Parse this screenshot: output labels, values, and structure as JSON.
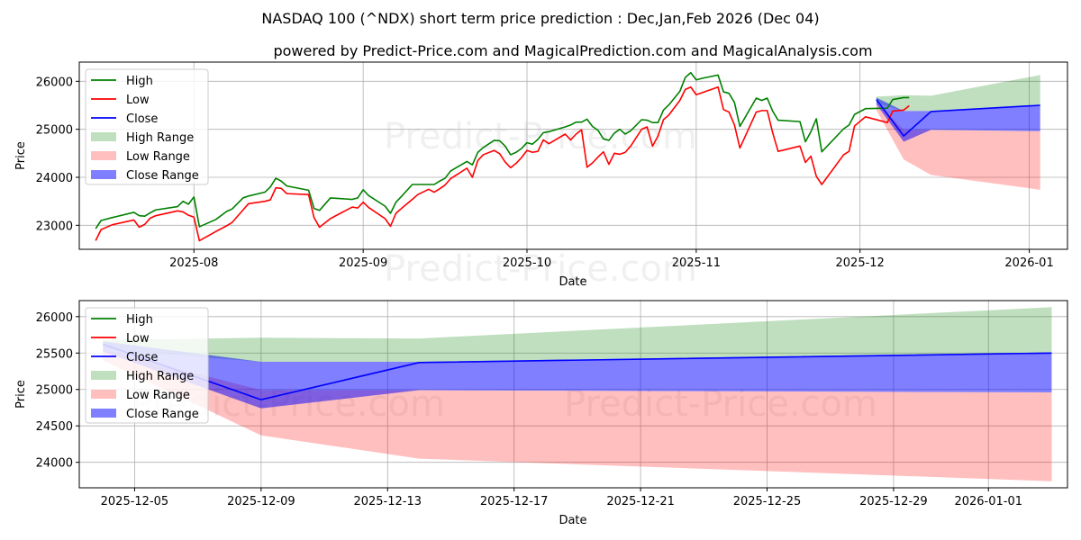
{
  "title": "NASDAQ 100 (^NDX) short term price prediction : Dec,Jan,Feb 2026 (Dec 04)",
  "subtitle": "powered by Predict-Price.com and MagicalPrediction.com and MagicalAnalysis.com",
  "watermark": "Predict-Price.com",
  "colors": {
    "high": "#008000",
    "low": "#ff0000",
    "close": "#0000ff",
    "high_range": "#008000",
    "low_range": "#ff0000",
    "close_range": "#0000ff",
    "grid": "#b0b0b0"
  },
  "legend": [
    {
      "key": "high",
      "label": "High",
      "kind": "line"
    },
    {
      "key": "low",
      "label": "Low",
      "kind": "line"
    },
    {
      "key": "close",
      "label": "Close",
      "kind": "line"
    },
    {
      "key": "high_range",
      "label": "High Range",
      "kind": "patch"
    },
    {
      "key": "low_range",
      "label": "Low Range",
      "kind": "patch"
    },
    {
      "key": "close_range",
      "label": "Close Range",
      "kind": "patch"
    }
  ],
  "chart_data": [
    {
      "type": "line",
      "panel": "top",
      "xlabel": "Date",
      "ylabel": "Price",
      "legend_position": "top-left",
      "grid": true,
      "xlim": [
        "2025-07-11",
        "2026-01-08"
      ],
      "ylim": [
        22500,
        26400
      ],
      "x_ticks": [
        {
          "date": "2025-08-01",
          "label": "2025-08"
        },
        {
          "date": "2025-09-01",
          "label": "2025-09"
        },
        {
          "date": "2025-10-01",
          "label": "2025-10"
        },
        {
          "date": "2025-11-01",
          "label": "2025-11"
        },
        {
          "date": "2025-12-01",
          "label": "2025-12"
        },
        {
          "date": "2026-01-01",
          "label": "2026-01"
        }
      ],
      "y_ticks": [
        23000,
        24000,
        25000,
        26000
      ],
      "history": [
        {
          "date": "2025-07-14",
          "high": 22930,
          "low": 22680
        },
        {
          "date": "2025-07-15",
          "high": 23100,
          "low": 22910
        },
        {
          "date": "2025-07-17",
          "high": 23160,
          "low": 23010
        },
        {
          "date": "2025-07-21",
          "high": 23270,
          "low": 23110
        },
        {
          "date": "2025-07-22",
          "high": 23200,
          "low": 22960
        },
        {
          "date": "2025-07-23",
          "high": 23190,
          "low": 23020
        },
        {
          "date": "2025-07-24",
          "high": 23260,
          "low": 23150
        },
        {
          "date": "2025-07-25",
          "high": 23320,
          "low": 23200
        },
        {
          "date": "2025-07-29",
          "high": 23390,
          "low": 23300
        },
        {
          "date": "2025-07-30",
          "high": 23500,
          "low": 23280
        },
        {
          "date": "2025-07-31",
          "high": 23440,
          "low": 23210
        },
        {
          "date": "2025-08-01",
          "high": 23590,
          "low": 23170
        },
        {
          "date": "2025-08-02",
          "high": 22970,
          "low": 22680
        },
        {
          "date": "2025-08-05",
          "high": 23120,
          "low": 22870
        },
        {
          "date": "2025-08-07",
          "high": 23290,
          "low": 22990
        },
        {
          "date": "2025-08-08",
          "high": 23340,
          "low": 23060
        },
        {
          "date": "2025-08-10",
          "high": 23570,
          "low": 23320
        },
        {
          "date": "2025-08-11",
          "high": 23610,
          "low": 23450
        },
        {
          "date": "2025-08-14",
          "high": 23690,
          "low": 23500
        },
        {
          "date": "2025-08-15",
          "high": 23800,
          "low": 23530
        },
        {
          "date": "2025-08-16",
          "high": 23980,
          "low": 23780
        },
        {
          "date": "2025-08-17",
          "high": 23920,
          "low": 23770
        },
        {
          "date": "2025-08-18",
          "high": 23820,
          "low": 23660
        },
        {
          "date": "2025-08-22",
          "high": 23730,
          "low": 23640
        },
        {
          "date": "2025-08-23",
          "high": 23350,
          "low": 23160
        },
        {
          "date": "2025-08-24",
          "high": 23310,
          "low": 22960
        },
        {
          "date": "2025-08-26",
          "high": 23570,
          "low": 23140
        },
        {
          "date": "2025-08-30",
          "high": 23540,
          "low": 23380
        },
        {
          "date": "2025-08-31",
          "high": 23570,
          "low": 23360
        },
        {
          "date": "2025-09-01",
          "high": 23740,
          "low": 23480
        },
        {
          "date": "2025-09-02",
          "high": 23620,
          "low": 23370
        },
        {
          "date": "2025-09-05",
          "high": 23400,
          "low": 23140
        },
        {
          "date": "2025-09-06",
          "high": 23250,
          "low": 22980
        },
        {
          "date": "2025-09-07",
          "high": 23480,
          "low": 23250
        },
        {
          "date": "2025-09-08",
          "high": 23600,
          "low": 23350
        },
        {
          "date": "2025-09-10",
          "high": 23850,
          "low": 23540
        },
        {
          "date": "2025-09-11",
          "high": 23850,
          "low": 23640
        },
        {
          "date": "2025-09-13",
          "high": 23850,
          "low": 23750
        },
        {
          "date": "2025-09-14",
          "high": 23850,
          "low": 23690
        },
        {
          "date": "2025-09-15",
          "high": 23920,
          "low": 23760
        },
        {
          "date": "2025-09-16",
          "high": 23980,
          "low": 23840
        },
        {
          "date": "2025-09-17",
          "high": 24130,
          "low": 23970
        },
        {
          "date": "2025-09-20",
          "high": 24330,
          "low": 24190
        },
        {
          "date": "2025-09-21",
          "high": 24260,
          "low": 24000
        },
        {
          "date": "2025-09-22",
          "high": 24520,
          "low": 24350
        },
        {
          "date": "2025-09-23",
          "high": 24620,
          "low": 24470
        },
        {
          "date": "2025-09-25",
          "high": 24770,
          "low": 24560
        },
        {
          "date": "2025-09-26",
          "high": 24760,
          "low": 24490
        },
        {
          "date": "2025-09-27",
          "high": 24650,
          "low": 24320
        },
        {
          "date": "2025-09-28",
          "high": 24470,
          "low": 24200
        },
        {
          "date": "2025-09-29",
          "high": 24520,
          "low": 24290
        },
        {
          "date": "2025-09-30",
          "high": 24600,
          "low": 24410
        },
        {
          "date": "2025-10-01",
          "high": 24720,
          "low": 24560
        },
        {
          "date": "2025-10-02",
          "high": 24690,
          "low": 24520
        },
        {
          "date": "2025-10-03",
          "high": 24790,
          "low": 24540
        },
        {
          "date": "2025-10-04",
          "high": 24930,
          "low": 24780
        },
        {
          "date": "2025-10-05",
          "high": 24950,
          "low": 24700
        },
        {
          "date": "2025-10-08",
          "high": 25050,
          "low": 24900
        },
        {
          "date": "2025-10-09",
          "high": 25090,
          "low": 24780
        },
        {
          "date": "2025-10-10",
          "high": 25150,
          "low": 24900
        },
        {
          "date": "2025-10-11",
          "high": 25150,
          "low": 24990
        },
        {
          "date": "2025-10-12",
          "high": 25210,
          "low": 24210
        },
        {
          "date": "2025-10-13",
          "high": 25060,
          "low": 24300
        },
        {
          "date": "2025-10-14",
          "high": 24980,
          "low": 24420
        },
        {
          "date": "2025-10-15",
          "high": 24800,
          "low": 24530
        },
        {
          "date": "2025-10-16",
          "high": 24770,
          "low": 24270
        },
        {
          "date": "2025-10-17",
          "high": 24920,
          "low": 24500
        },
        {
          "date": "2025-10-18",
          "high": 25000,
          "low": 24480
        },
        {
          "date": "2025-10-19",
          "high": 24900,
          "low": 24520
        },
        {
          "date": "2025-10-20",
          "high": 24970,
          "low": 24650
        },
        {
          "date": "2025-10-22",
          "high": 25200,
          "low": 25000
        },
        {
          "date": "2025-10-23",
          "high": 25190,
          "low": 25050
        },
        {
          "date": "2025-10-24",
          "high": 25140,
          "low": 24650
        },
        {
          "date": "2025-10-25",
          "high": 25140,
          "low": 24860
        },
        {
          "date": "2025-10-26",
          "high": 25400,
          "low": 25200
        },
        {
          "date": "2025-10-27",
          "high": 25510,
          "low": 25300
        },
        {
          "date": "2025-10-29",
          "high": 25790,
          "low": 25600
        },
        {
          "date": "2025-10-30",
          "high": 26080,
          "low": 25830
        },
        {
          "date": "2025-10-31",
          "high": 26180,
          "low": 25880
        },
        {
          "date": "2025-11-01",
          "high": 26030,
          "low": 25720
        },
        {
          "date": "2025-11-02",
          "high": 26060,
          "low": 25760
        },
        {
          "date": "2025-11-05",
          "high": 26130,
          "low": 25880
        },
        {
          "date": "2025-11-06",
          "high": 25780,
          "low": 25410
        },
        {
          "date": "2025-11-07",
          "high": 25750,
          "low": 25360
        },
        {
          "date": "2025-11-08",
          "high": 25560,
          "low": 25090
        },
        {
          "date": "2025-11-09",
          "high": 25060,
          "low": 24610
        },
        {
          "date": "2025-11-12",
          "high": 25650,
          "low": 25360
        },
        {
          "date": "2025-11-13",
          "high": 25600,
          "low": 25390
        },
        {
          "date": "2025-11-14",
          "high": 25650,
          "low": 25390
        },
        {
          "date": "2025-11-15",
          "high": 25380,
          "low": 24930
        },
        {
          "date": "2025-11-16",
          "high": 25190,
          "low": 24540
        },
        {
          "date": "2025-11-20",
          "high": 25160,
          "low": 24650
        },
        {
          "date": "2025-11-21",
          "high": 24740,
          "low": 24310
        },
        {
          "date": "2025-11-22",
          "high": 24950,
          "low": 24440
        },
        {
          "date": "2025-11-23",
          "high": 25220,
          "low": 24020
        },
        {
          "date": "2025-11-24",
          "high": 24530,
          "low": 23850
        },
        {
          "date": "2025-11-28",
          "high": 25010,
          "low": 24470
        },
        {
          "date": "2025-11-29",
          "high": 25090,
          "low": 24540
        },
        {
          "date": "2025-11-30",
          "high": 25310,
          "low": 25070
        },
        {
          "date": "2025-12-02",
          "high": 25430,
          "low": 25260
        },
        {
          "date": "2025-12-06",
          "high": 25440,
          "low": 25140
        },
        {
          "date": "2025-12-07",
          "high": 25620,
          "low": 25380
        },
        {
          "date": "2025-12-09",
          "high": 25660,
          "low": 25400
        },
        {
          "date": "2025-12-10",
          "high": 25660,
          "low": 25490
        }
      ]
    },
    {
      "type": "area",
      "panel": "bottom",
      "xlabel": "Date",
      "ylabel": "Price",
      "legend_position": "top-left",
      "grid": true,
      "xlim": [
        "2025-12-03.25",
        "2026-01-03.5"
      ],
      "ylim": [
        23650,
        26220
      ],
      "x_ticks": [
        {
          "date": "2025-12-05",
          "label": "2025-12-05"
        },
        {
          "date": "2025-12-09",
          "label": "2025-12-09"
        },
        {
          "date": "2025-12-13",
          "label": "2025-12-13"
        },
        {
          "date": "2025-12-17",
          "label": "2025-12-17"
        },
        {
          "date": "2025-12-21",
          "label": "2025-12-21"
        },
        {
          "date": "2025-12-25",
          "label": "2025-12-25"
        },
        {
          "date": "2025-12-29",
          "label": "2025-12-29"
        },
        {
          "date": "2026-01-01",
          "label": "2026-01-01"
        }
      ],
      "y_ticks": [
        24000,
        24500,
        25000,
        25500,
        26000
      ],
      "forecast": [
        {
          "date": "2025-12-04",
          "close": 25620,
          "high_lo": 25550,
          "high_hi": 25680,
          "low_lo": 25400,
          "low_hi": 25550,
          "close_lo": 25520,
          "close_hi": 25660
        },
        {
          "date": "2025-12-09",
          "close": 24860,
          "high_lo": 25380,
          "high_hi": 25710,
          "low_lo": 24370,
          "low_hi": 24990,
          "close_lo": 24740,
          "close_hi": 25380
        },
        {
          "date": "2025-12-14",
          "close": 25370,
          "high_lo": 25380,
          "high_hi": 25700,
          "low_lo": 24050,
          "low_hi": 24990,
          "close_lo": 24990,
          "close_hi": 25380
        },
        {
          "date": "2026-01-03",
          "close": 25500,
          "high_lo": 25510,
          "high_hi": 26130,
          "low_lo": 23740,
          "low_hi": 24960,
          "close_lo": 24960,
          "close_hi": 25510
        }
      ]
    }
  ]
}
